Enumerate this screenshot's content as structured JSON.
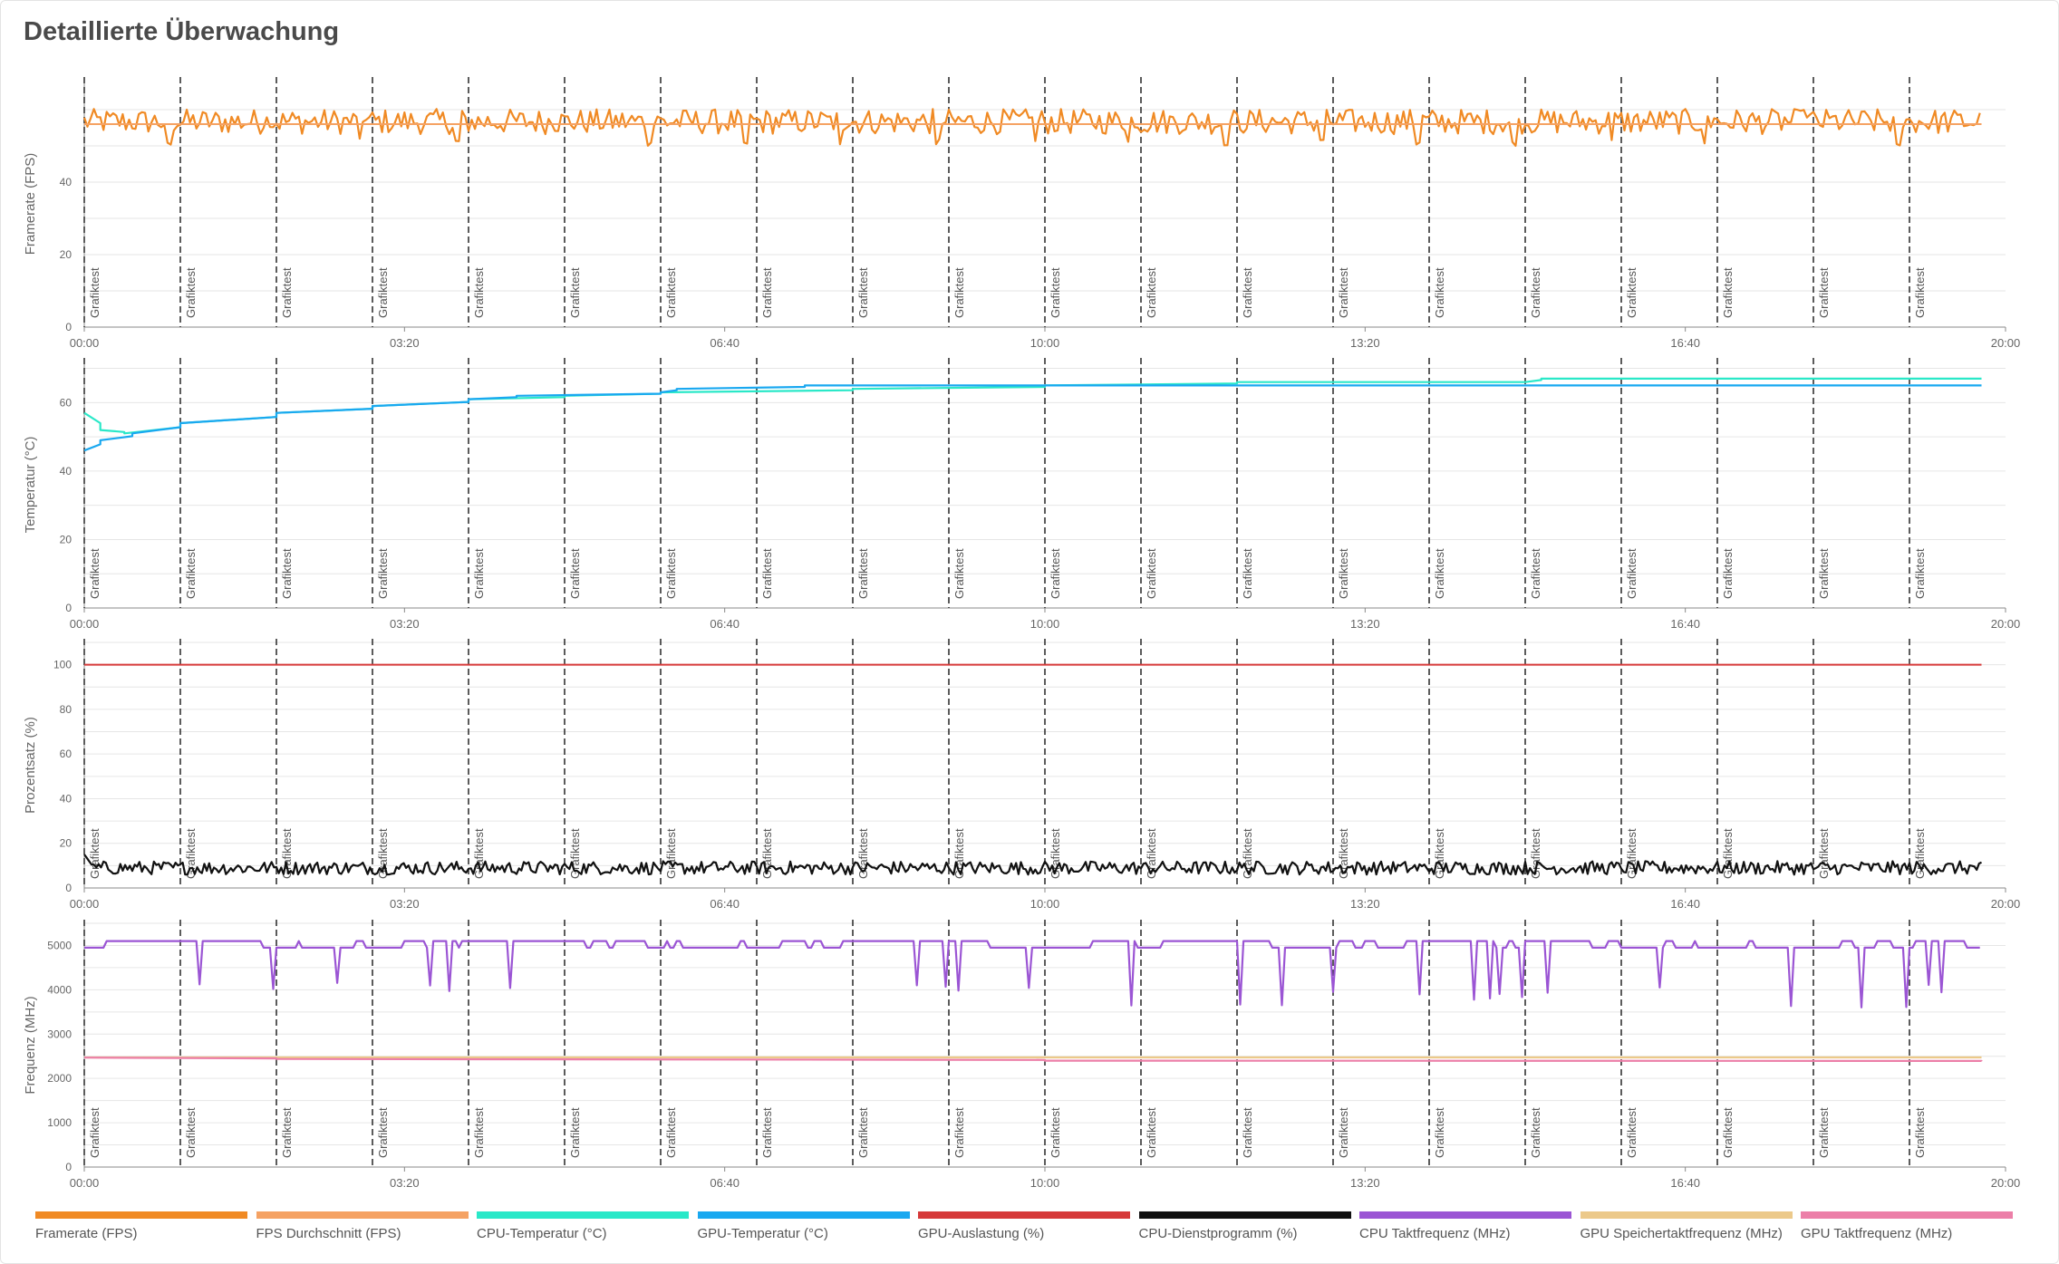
{
  "header": {
    "title": "Detaillierte Überwachung"
  },
  "event_label": "Grafiktest",
  "colors": {
    "fps": "#f08a24",
    "fps_avg": "#f5a263",
    "cpu_temp": "#2ae8c8",
    "gpu_temp": "#19a8f0",
    "gpu_util": "#d63a3a",
    "cpu_util": "#111111",
    "cpu_clock": "#9b55d4",
    "gpu_mem_clock": "#ecc98a",
    "gpu_clock": "#ec7fa8",
    "grid": "#e6e6e6",
    "axis": "#888888",
    "marker": "#333333"
  },
  "chart_data": [
    {
      "type": "line",
      "ylabel": "Framerate (FPS)",
      "ylim": [
        0,
        68
      ],
      "yticks": [
        0,
        20,
        40
      ],
      "xticks": [
        "00:00",
        "03:20",
        "06:40",
        "10:00",
        "13:20",
        "16:40",
        "20:00"
      ],
      "x_range_seconds": [
        0,
        1200
      ],
      "event_markers_seconds": [
        0,
        60,
        120,
        180,
        240,
        300,
        360,
        420,
        480,
        540,
        600,
        660,
        720,
        780,
        840,
        900,
        960,
        1020,
        1080,
        1140
      ],
      "series": [
        {
          "name": "Framerate (FPS)",
          "key": "fps",
          "approx": {
            "base": 56,
            "amplitude": 3.5,
            "dips_per_segment": 3,
            "dip_to": 50
          }
        },
        {
          "name": "FPS Durchschnitt (FPS)",
          "key": "fps_avg",
          "constant": 56
        }
      ]
    },
    {
      "type": "line",
      "ylabel": "Temperatur (°C)",
      "ylim": [
        0,
        72
      ],
      "yticks": [
        0,
        20,
        40,
        60
      ],
      "xticks": [
        "00:00",
        "03:20",
        "06:40",
        "10:00",
        "13:20",
        "16:40",
        "20:00"
      ],
      "x_range_seconds": [
        0,
        1200
      ],
      "event_markers_seconds": [
        0,
        60,
        120,
        180,
        240,
        300,
        360,
        420,
        480,
        540,
        600,
        660,
        720,
        780,
        840,
        900,
        960,
        1020,
        1080,
        1140
      ],
      "series": [
        {
          "name": "CPU-Temperatur (°C)",
          "key": "cpu_temp",
          "points": [
            [
              0,
              57
            ],
            [
              10,
              52
            ],
            [
              25,
              51
            ],
            [
              60,
              54
            ],
            [
              120,
              57
            ],
            [
              180,
              59
            ],
            [
              240,
              61
            ],
            [
              300,
              62
            ],
            [
              360,
              63
            ],
            [
              480,
              64
            ],
            [
              600,
              65
            ],
            [
              720,
              66
            ],
            [
              900,
              66
            ],
            [
              910,
              67
            ],
            [
              1200,
              67
            ]
          ]
        },
        {
          "name": "GPU-Temperatur (°C)",
          "key": "gpu_temp",
          "points": [
            [
              0,
              46
            ],
            [
              10,
              49
            ],
            [
              30,
              51
            ],
            [
              60,
              54
            ],
            [
              120,
              57
            ],
            [
              180,
              59
            ],
            [
              240,
              61
            ],
            [
              270,
              62
            ],
            [
              360,
              63
            ],
            [
              370,
              64
            ],
            [
              450,
              65
            ],
            [
              600,
              65
            ],
            [
              1200,
              65
            ]
          ]
        }
      ]
    },
    {
      "type": "line",
      "ylabel": "Prozentsatz (%)",
      "ylim": [
        0,
        110
      ],
      "yticks": [
        0,
        20,
        40,
        60,
        80,
        100
      ],
      "xticks": [
        "00:00",
        "03:20",
        "06:40",
        "10:00",
        "13:20",
        "16:40",
        "20:00"
      ],
      "x_range_seconds": [
        0,
        1200
      ],
      "event_markers_seconds": [
        0,
        60,
        120,
        180,
        240,
        300,
        360,
        420,
        480,
        540,
        600,
        660,
        720,
        780,
        840,
        900,
        960,
        1020,
        1080,
        1140
      ],
      "series": [
        {
          "name": "GPU-Auslastung (%)",
          "key": "gpu_util",
          "constant": 100
        },
        {
          "name": "CPU-Dienstprogramm (%)",
          "key": "cpu_util",
          "approx": {
            "base": 9,
            "amplitude": 3,
            "start_peak": 15
          }
        }
      ]
    },
    {
      "type": "line",
      "ylabel": "Frequenz (MHz)",
      "ylim": [
        0,
        5500
      ],
      "yticks": [
        0,
        1000,
        2000,
        3000,
        4000,
        5000
      ],
      "xticks": [
        "00:00",
        "03:20",
        "06:40",
        "10:00",
        "13:20",
        "16:40",
        "20:00"
      ],
      "x_range_seconds": [
        0,
        1200
      ],
      "event_markers_seconds": [
        0,
        60,
        120,
        180,
        240,
        300,
        360,
        420,
        480,
        540,
        600,
        660,
        720,
        780,
        840,
        900,
        960,
        1020,
        1080,
        1140
      ],
      "series": [
        {
          "name": "CPU Taktfrequenz (MHz)",
          "key": "cpu_clock",
          "approx": {
            "levels": [
              4950,
              5100
            ],
            "dip_range": [
              3600,
              4200
            ]
          }
        },
        {
          "name": "GPU Speichertaktfrequenz (MHz)",
          "key": "gpu_mem_clock",
          "constant": 2475
        },
        {
          "name": "GPU Taktfrequenz (MHz)",
          "key": "gpu_clock",
          "points": [
            [
              0,
              2470
            ],
            [
              120,
              2440
            ],
            [
              600,
              2400
            ],
            [
              1200,
              2390
            ]
          ]
        }
      ]
    }
  ],
  "legend": [
    {
      "label": "Framerate (FPS)",
      "key": "fps"
    },
    {
      "label": "FPS Durchschnitt (FPS)",
      "key": "fps_avg"
    },
    {
      "label": "CPU-Temperatur (°C)",
      "key": "cpu_temp"
    },
    {
      "label": "GPU-Temperatur (°C)",
      "key": "gpu_temp"
    },
    {
      "label": "GPU-Auslastung (%)",
      "key": "gpu_util"
    },
    {
      "label": "CPU-Dienstprogramm (%)",
      "key": "cpu_util"
    },
    {
      "label": "CPU Taktfrequenz (MHz)",
      "key": "cpu_clock"
    },
    {
      "label": "GPU Speichertaktfrequenz (MHz)",
      "key": "gpu_mem_clock"
    },
    {
      "label": "GPU Taktfrequenz (MHz)",
      "key": "gpu_clock"
    }
  ]
}
